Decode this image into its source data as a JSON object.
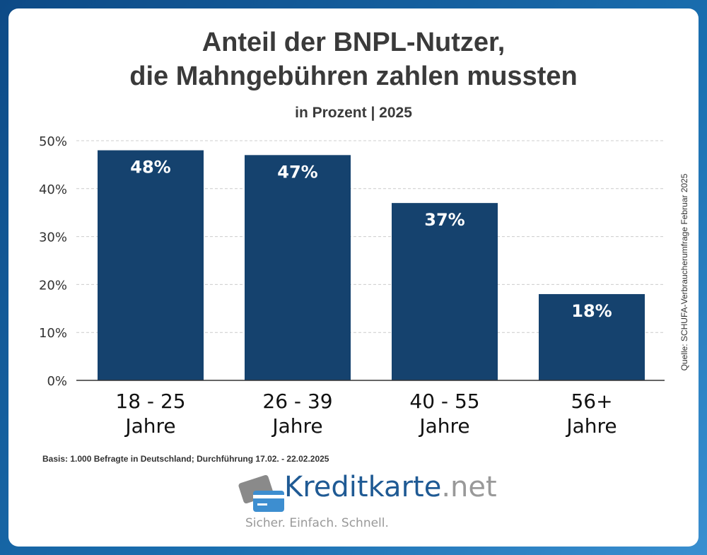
{
  "chart_data": {
    "type": "bar",
    "title": "Anteil der BNPL-Nutzer,\ndie Mahngebühren zahlen mussten",
    "title_line1": "Anteil der BNPL-Nutzer,",
    "title_line2": "die Mahngebühren zahlen mussten",
    "subtitle": "in Prozent | 2025",
    "categories": [
      "18 - 25 Jahre",
      "26 - 39 Jahre",
      "40 - 55 Jahre",
      "56+ Jahre"
    ],
    "category_lines": [
      [
        "18 - 25",
        "Jahre"
      ],
      [
        "26 - 39",
        "Jahre"
      ],
      [
        "40 - 55",
        "Jahre"
      ],
      [
        "56+",
        "Jahre"
      ]
    ],
    "values": [
      48,
      47,
      37,
      18
    ],
    "data_labels": [
      "48%",
      "47%",
      "37%",
      "18%"
    ],
    "ylim": [
      0,
      50
    ],
    "yticks": [
      "0%",
      "10%",
      "20%",
      "30%",
      "40%",
      "50%"
    ],
    "grid": true,
    "bar_color": "#15426e"
  },
  "source": "Quelle: SCHUFA-Verbraucherumfrage Februar 2025",
  "basis": "Basis: 1.000 Befragte in Deutschland; Durchführung 17.02. - 22.02.2025",
  "logo": {
    "brand": "Kreditkarte",
    "tld": ".net",
    "tagline": "Sicher. Einfach. Schnell."
  }
}
